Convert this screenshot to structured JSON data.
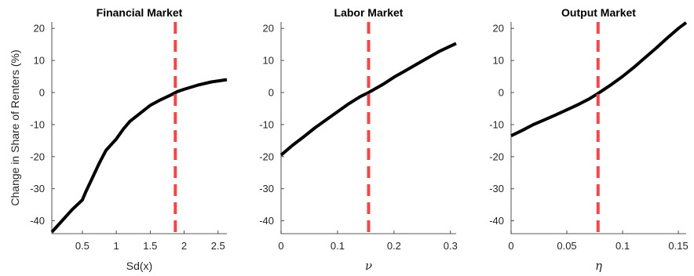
{
  "chart_data": [
    {
      "type": "line",
      "title": "Financial Market",
      "xlabel": "Sd(x)",
      "ylabel": "Change in Share of Renters (%)",
      "xlim": [
        0.05,
        2.63
      ],
      "ylim": [
        -44,
        22
      ],
      "xticks": [
        0.5,
        1,
        1.5,
        2,
        2.5
      ],
      "xtick_labels": [
        "0.5",
        "1",
        "1.5",
        "2",
        "2.5"
      ],
      "yticks": [
        -40,
        -30,
        -20,
        -10,
        0,
        10,
        20
      ],
      "ytick_labels": [
        "-40",
        "-30",
        "-20",
        "-10",
        "0",
        "10",
        "20"
      ],
      "ref_line_x": 1.87,
      "line_color": "#000000",
      "ref_line_color": "#f04848",
      "series": [
        {
          "x": [
            0.05,
            0.2,
            0.35,
            0.5,
            0.55,
            0.65,
            0.75,
            0.85,
            1.0,
            1.1,
            1.2,
            1.35,
            1.5,
            1.65,
            1.8,
            1.9,
            2.0,
            2.2,
            2.4,
            2.63
          ],
          "values": [
            -43.5,
            -40.0,
            -36.5,
            -33.5,
            -31.0,
            -26.5,
            -22.0,
            -18.0,
            -14.5,
            -11.5,
            -9.0,
            -6.5,
            -4.0,
            -2.3,
            -0.8,
            0.3,
            1.0,
            2.3,
            3.3,
            4.0
          ]
        }
      ]
    },
    {
      "type": "line",
      "title": "Labor Market",
      "xlabel": "ν",
      "ylabel": "",
      "xlim": [
        0,
        0.31
      ],
      "ylim": [
        -44,
        22
      ],
      "xticks": [
        0,
        0.1,
        0.2,
        0.3
      ],
      "xtick_labels": [
        "0",
        "0.1",
        "0.2",
        "0.3"
      ],
      "yticks": [
        -40,
        -30,
        -20,
        -10,
        0,
        10,
        20
      ],
      "ytick_labels": [
        "-40",
        "-30",
        "-20",
        "-10",
        "0",
        "10",
        "20"
      ],
      "ref_line_x": 0.155,
      "line_color": "#000000",
      "ref_line_color": "#f04848",
      "series": [
        {
          "x": [
            0,
            0.02,
            0.04,
            0.06,
            0.08,
            0.1,
            0.12,
            0.14,
            0.155,
            0.18,
            0.2,
            0.22,
            0.24,
            0.26,
            0.28,
            0.31
          ],
          "values": [
            -19.5,
            -16.5,
            -13.8,
            -11.0,
            -8.5,
            -6.0,
            -3.5,
            -1.3,
            0.0,
            2.5,
            4.8,
            6.8,
            8.8,
            10.8,
            12.8,
            15.3
          ]
        }
      ]
    },
    {
      "type": "line",
      "title": "Output Market",
      "xlabel": "η",
      "ylabel": "",
      "xlim": [
        0,
        0.157
      ],
      "ylim": [
        -44,
        22
      ],
      "xticks": [
        0,
        0.05,
        0.1,
        0.15
      ],
      "xtick_labels": [
        "0",
        "0.05",
        "0.1",
        "0.15"
      ],
      "yticks": [
        -40,
        -30,
        -20,
        -10,
        0,
        10,
        20
      ],
      "ytick_labels": [
        "-40",
        "-30",
        "-20",
        "-10",
        "0",
        "10",
        "20"
      ],
      "ref_line_x": 0.078,
      "line_color": "#000000",
      "ref_line_color": "#f04848",
      "series": [
        {
          "x": [
            0,
            0.01,
            0.02,
            0.03,
            0.04,
            0.05,
            0.06,
            0.07,
            0.078,
            0.09,
            0.1,
            0.11,
            0.12,
            0.13,
            0.14,
            0.15,
            0.157
          ],
          "values": [
            -13.5,
            -11.8,
            -10.0,
            -8.5,
            -7.0,
            -5.4,
            -3.8,
            -2.0,
            -0.3,
            2.5,
            5.0,
            7.8,
            10.8,
            13.8,
            17.0,
            20.0,
            21.8
          ]
        }
      ]
    }
  ]
}
